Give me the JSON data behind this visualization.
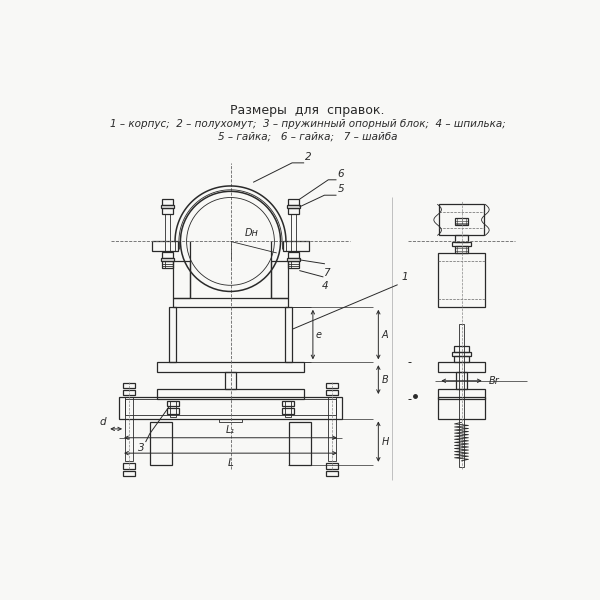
{
  "bg_color": "#f8f8f6",
  "line_color": "#2a2a2a",
  "thin_color": "#3a3a3a",
  "dim_color": "#2a2a2a",
  "title_text": "Размеры  для  справок.",
  "legend_line1": "1 – корпус;  2 – полухомут;  3 – пружинный опорный блок;  4 – шпилька;",
  "legend_line2": "5 – гайка;   6 – гайка;   7 – шайба"
}
